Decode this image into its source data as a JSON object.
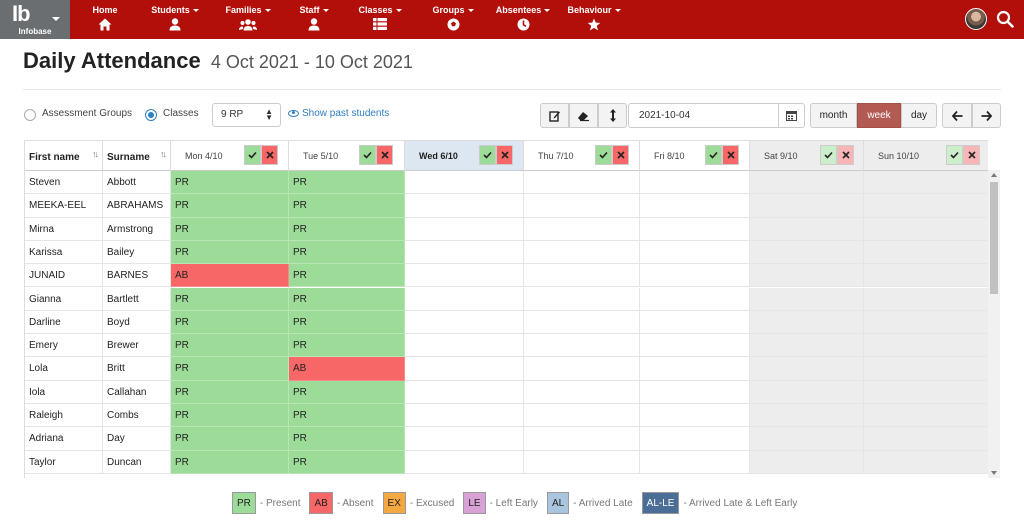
{
  "app": {
    "logo_text": "Ib",
    "logo_sub": "Infobase",
    "nav": [
      {
        "label": "Home",
        "icon": "home-icon",
        "dropdown": false
      },
      {
        "label": "Students",
        "icon": "user-icon",
        "dropdown": true
      },
      {
        "label": "Families",
        "icon": "users-icon",
        "dropdown": true
      },
      {
        "label": "Staff",
        "icon": "user-icon",
        "dropdown": true
      },
      {
        "label": "Classes",
        "icon": "list-icon",
        "dropdown": true
      },
      {
        "label": "Groups",
        "icon": "ball-icon",
        "dropdown": true
      },
      {
        "label": "Absentees",
        "icon": "clock-icon",
        "dropdown": true
      },
      {
        "label": "Behaviour",
        "icon": "star-icon",
        "dropdown": true
      }
    ],
    "colors": {
      "nav_bg": "#b30f0a",
      "present": "#9ddc98",
      "absent": "#f86767",
      "excused": "#f5a742",
      "left_early": "#d8a2d6",
      "arrived_late": "#a9c6de",
      "al_le": "#4a6e96"
    }
  },
  "page": {
    "title": "Daily Attendance",
    "date_range": "4 Oct 2021 - 10 Oct 2021"
  },
  "controls": {
    "assessment_groups_label": "Assessment Groups",
    "classes_label": "Classes",
    "class_select_value": "9 RP",
    "show_past_label": "Show past students",
    "date_value": "2021-10-04",
    "views": [
      "month",
      "week",
      "day"
    ],
    "active_view": "week"
  },
  "table": {
    "headers": {
      "first_name": "First name",
      "surname": "Surname"
    },
    "days": [
      {
        "label": "Mon 4/10",
        "state": "normal"
      },
      {
        "label": "Tue 5/10",
        "state": "normal"
      },
      {
        "label": "Wed 6/10",
        "state": "today"
      },
      {
        "label": "Thu 7/10",
        "state": "normal"
      },
      {
        "label": "Fri 8/10",
        "state": "normal"
      },
      {
        "label": "Sat 9/10",
        "state": "weekend"
      },
      {
        "label": "Sun 10/10",
        "state": "weekend"
      }
    ],
    "rows": [
      {
        "first": "Steven",
        "last": "Abbott",
        "mon": "PR",
        "tue": "PR"
      },
      {
        "first": "MEEKA-EEL",
        "last": "ABRAHAMS",
        "mon": "PR",
        "tue": "PR"
      },
      {
        "first": "Mirna",
        "last": "Armstrong",
        "mon": "PR",
        "tue": "PR"
      },
      {
        "first": "Karissa",
        "last": "Bailey",
        "mon": "PR",
        "tue": "PR"
      },
      {
        "first": "JUNAID",
        "last": "BARNES",
        "mon": "AB",
        "tue": "PR"
      },
      {
        "first": "Gianna",
        "last": "Bartlett",
        "mon": "PR",
        "tue": "PR"
      },
      {
        "first": "Darline",
        "last": "Boyd",
        "mon": "PR",
        "tue": "PR"
      },
      {
        "first": "Emery",
        "last": "Brewer",
        "mon": "PR",
        "tue": "PR"
      },
      {
        "first": "Lola",
        "last": "Britt",
        "mon": "PR",
        "tue": "AB"
      },
      {
        "first": "Iola",
        "last": "Callahan",
        "mon": "PR",
        "tue": "PR"
      },
      {
        "first": "Raleigh",
        "last": "Combs",
        "mon": "PR",
        "tue": "PR"
      },
      {
        "first": "Adriana",
        "last": "Day",
        "mon": "PR",
        "tue": "PR"
      },
      {
        "first": "Taylor",
        "last": "Duncan",
        "mon": "PR",
        "tue": "PR"
      }
    ]
  },
  "legend": [
    {
      "code": "PR",
      "text": "- Present",
      "color": "#9ddc98",
      "fg": "#222"
    },
    {
      "code": "AB",
      "text": "- Absent",
      "color": "#f86767",
      "fg": "#222"
    },
    {
      "code": "EX",
      "text": "- Excused",
      "color": "#f5a742",
      "fg": "#222"
    },
    {
      "code": "LE",
      "text": "- Left Early",
      "color": "#d8a2d6",
      "fg": "#222"
    },
    {
      "code": "AL",
      "text": "- Arrived Late",
      "color": "#a9c6de",
      "fg": "#222"
    },
    {
      "code": "AL-LE",
      "text": "- Arrived Late & Left Early",
      "color": "#4a6e96",
      "fg": "#ffffff"
    }
  ]
}
